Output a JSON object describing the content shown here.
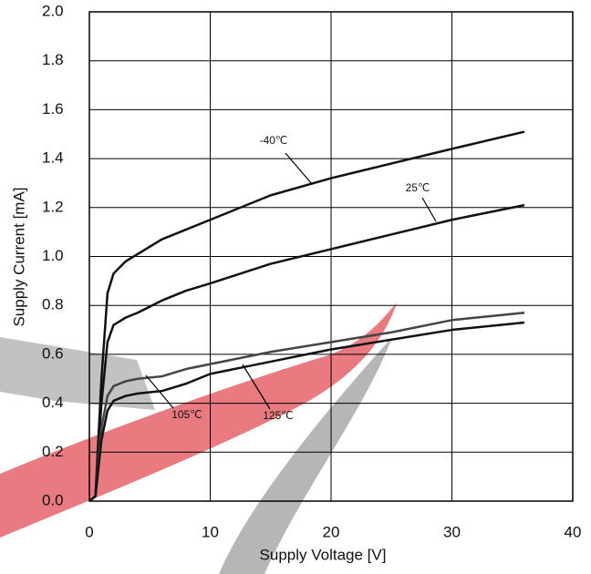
{
  "chart_data": {
    "type": "line",
    "xlabel": "Supply Voltage [V]",
    "ylabel": "Supply Current [mA]",
    "x": [
      0,
      0.5,
      1,
      1.5,
      2,
      3,
      4,
      6,
      8,
      10,
      15,
      20,
      25,
      30,
      36
    ],
    "series": [
      {
        "name": "-40℃",
        "color": "#111111",
        "values": [
          0,
          0.02,
          0.5,
          0.85,
          0.93,
          0.98,
          1.01,
          1.07,
          1.11,
          1.15,
          1.25,
          1.32,
          1.38,
          1.44,
          1.51
        ]
      },
      {
        "name": "25℃",
        "color": "#111111",
        "values": [
          0,
          0.02,
          0.4,
          0.65,
          0.72,
          0.75,
          0.77,
          0.82,
          0.86,
          0.89,
          0.97,
          1.03,
          1.09,
          1.15,
          1.21
        ]
      },
      {
        "name": "105℃",
        "color": "#444444",
        "values": [
          0,
          0.02,
          0.3,
          0.43,
          0.47,
          0.49,
          0.5,
          0.51,
          0.54,
          0.56,
          0.61,
          0.65,
          0.69,
          0.74,
          0.77
        ]
      },
      {
        "name": "125℃",
        "color": "#111111",
        "values": [
          0,
          0.02,
          0.25,
          0.37,
          0.41,
          0.43,
          0.44,
          0.45,
          0.48,
          0.52,
          0.57,
          0.62,
          0.66,
          0.7,
          0.73
        ]
      }
    ],
    "xlim": [
      0,
      40
    ],
    "xticks": [
      0,
      10,
      20,
      30,
      40
    ],
    "ylim": [
      0,
      2
    ],
    "yticks": [
      {
        "value": 0,
        "label": "0.0"
      },
      {
        "value": 0.2,
        "label": "0.2"
      },
      {
        "value": 0.4,
        "label": "0.4"
      },
      {
        "value": 0.6,
        "label": "0.6"
      },
      {
        "value": 0.8,
        "label": "0.8"
      },
      {
        "value": 1,
        "label": "1.0"
      },
      {
        "value": 1.2,
        "label": "1.2"
      },
      {
        "value": 1.4,
        "label": "1.4"
      },
      {
        "value": 1.6,
        "label": "1.6"
      },
      {
        "value": 1.8,
        "label": "1.8"
      },
      {
        "value": 2,
        "label": "2.0"
      }
    ],
    "grid": true
  }
}
